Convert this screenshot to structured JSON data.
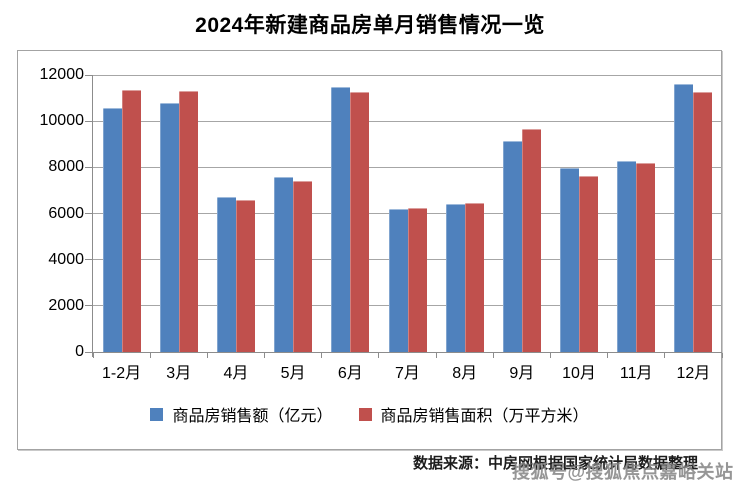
{
  "page": {
    "title": "2024年新建商品房单月销售情况一览",
    "source_note": "数据来源：中房网根据国家统计局数据整理",
    "watermark": "搜狐号@搜狐焦点嘉峪关站"
  },
  "colors": {
    "sales_amount_blue": "#4F81BD",
    "sales_area_red": "#C0504D",
    "gridline": "#A6A6A6",
    "axis": "#8C8C8C",
    "chart_border": "#A3A3A3",
    "watermark_gray": "#848484"
  },
  "chart_data": {
    "type": "bar",
    "title": "2024年新建商品房单月销售情况一览",
    "categories": [
      "1-2月",
      "3月",
      "4月",
      "5月",
      "6月",
      "7月",
      "8月",
      "9月",
      "10月",
      "11月",
      "12月"
    ],
    "series": [
      {
        "name": "商品房销售额（亿元）",
        "color": "#4F81BD",
        "values": [
          10566,
          10789,
          6712,
          7598,
          11468,
          6197,
          6393,
          9157,
          7975,
          8270,
          11625
        ]
      },
      {
        "name": "商品房销售面积（万平方米）",
        "color": "#C0504D",
        "values": [
          11369,
          11299,
          6584,
          7390,
          11274,
          6233,
          6453,
          9682,
          7646,
          8188,
          11267
        ]
      }
    ],
    "xlabel": "",
    "ylabel": "",
    "ylim": [
      0,
      12000
    ],
    "ytick_interval": 2000,
    "yticks": [
      0,
      2000,
      4000,
      6000,
      8000,
      10000,
      12000
    ],
    "grid": true,
    "legend_position": "bottom"
  }
}
